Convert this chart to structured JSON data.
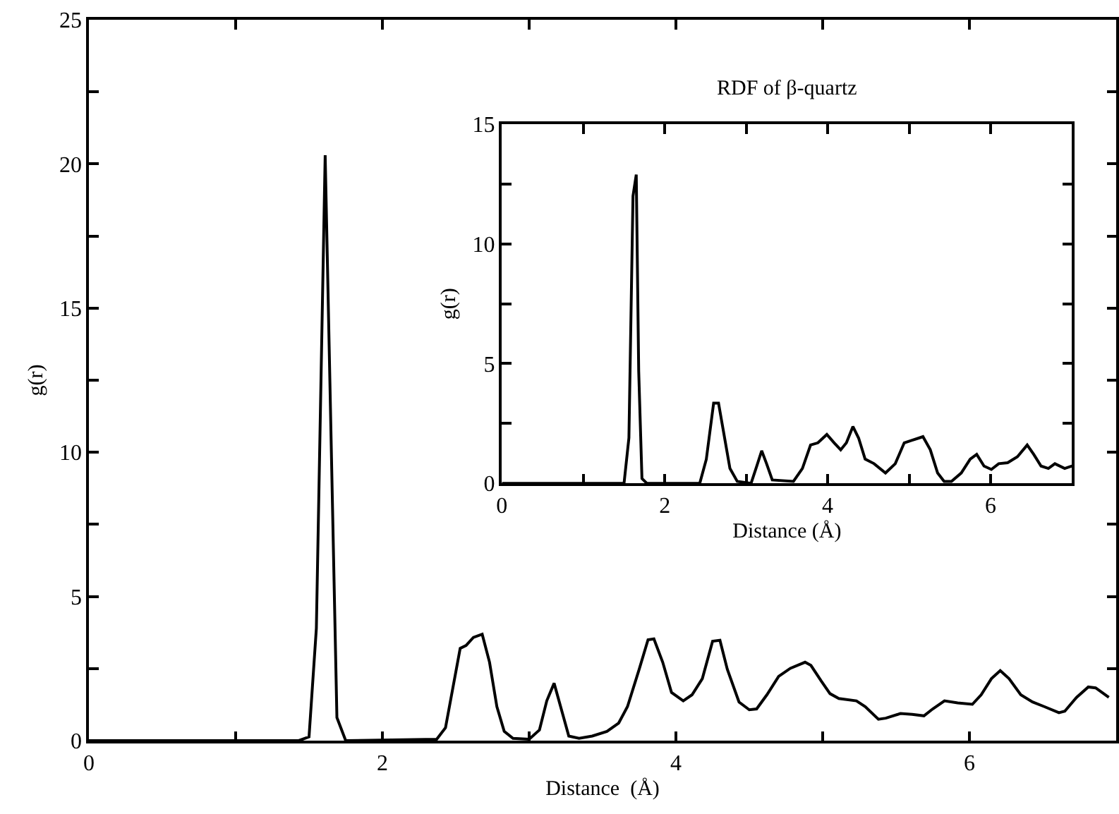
{
  "chart_data": [
    {
      "type": "line",
      "xlabel": "Distance  (Å)",
      "ylabel": "g(r)",
      "xlim": [
        0,
        7
      ],
      "ylim": [
        0,
        25
      ],
      "xticks": [
        0,
        {
          "value": 1,
          "label": null
        },
        2,
        {
          "value": 3,
          "label": null
        },
        4,
        {
          "value": 5,
          "label": null
        },
        6,
        {
          "value": 7,
          "label": null
        }
      ],
      "yticks": [
        0,
        {
          "value": 2.5,
          "label": null
        },
        5,
        {
          "value": 7.5,
          "label": null
        },
        10,
        {
          "value": 12.5,
          "label": null
        },
        15,
        {
          "value": 17.5,
          "label": null
        },
        20,
        {
          "value": 22.5,
          "label": null
        },
        25
      ],
      "marker": "none",
      "line_style": "solid",
      "series": [
        {
          "color": "#000000",
          "x": [
            0,
            1.43,
            1.5,
            1.55,
            1.61,
            1.69,
            1.75,
            2.37,
            2.43,
            2.53,
            2.57,
            2.62,
            2.68,
            2.73,
            2.78,
            2.83,
            2.89,
            3.0,
            3.07,
            3.12,
            3.17,
            3.27,
            3.34,
            3.43,
            3.53,
            3.61,
            3.67,
            3.75,
            3.81,
            3.85,
            3.91,
            3.97,
            4.05,
            4.11,
            4.18,
            4.25,
            4.3,
            4.35,
            4.43,
            4.5,
            4.55,
            4.62,
            4.7,
            4.78,
            4.88,
            4.92,
            4.99,
            5.05,
            5.11,
            5.23,
            5.29,
            5.38,
            5.43,
            5.53,
            5.61,
            5.69,
            5.75,
            5.83,
            5.92,
            6.02,
            6.08,
            6.15,
            6.21,
            6.27,
            6.35,
            6.43,
            6.51,
            6.61,
            6.65,
            6.73,
            6.81,
            6.86,
            6.95
          ],
          "values": [
            0,
            0,
            0.13,
            3.9,
            20.3,
            0.8,
            0,
            0.05,
            0.45,
            3.2,
            3.3,
            3.58,
            3.69,
            2.72,
            1.18,
            0.32,
            0.08,
            0.05,
            0.37,
            1.38,
            1.99,
            0.16,
            0.08,
            0.16,
            0.32,
            0.61,
            1.18,
            2.48,
            3.5,
            3.53,
            2.72,
            1.67,
            1.38,
            1.59,
            2.15,
            3.45,
            3.48,
            2.48,
            1.34,
            1.07,
            1.1,
            1.59,
            2.23,
            2.51,
            2.72,
            2.61,
            2.07,
            1.63,
            1.46,
            1.38,
            1.18,
            0.74,
            0.78,
            0.94,
            0.91,
            0.86,
            1.1,
            1.38,
            1.31,
            1.26,
            1.59,
            2.15,
            2.43,
            2.15,
            1.59,
            1.34,
            1.18,
            0.97,
            1.02,
            1.5,
            1.86,
            1.83,
            1.5
          ]
        }
      ]
    },
    {
      "type": "line",
      "title": "RDF of β-quartz",
      "xlabel": "Distance (Å)",
      "ylabel": "g(r)",
      "xlim": [
        0,
        7
      ],
      "ylim": [
        0,
        15
      ],
      "xticks": [
        0,
        {
          "value": 1,
          "label": null
        },
        2,
        {
          "value": 3,
          "label": null
        },
        4,
        {
          "value": 5,
          "label": null
        },
        6,
        {
          "value": 7,
          "label": null
        }
      ],
      "yticks": [
        0,
        {
          "value": 2.5,
          "label": null
        },
        5,
        {
          "value": 7.5,
          "label": null
        },
        10,
        {
          "value": 12.5,
          "label": null
        },
        15
      ],
      "marker": "none",
      "line_style": "solid",
      "series": [
        {
          "color": "#000000",
          "x": [
            0,
            1.5,
            1.56,
            1.61,
            1.65,
            1.68,
            1.72,
            1.78,
            2.43,
            2.51,
            2.6,
            2.66,
            2.72,
            2.8,
            2.89,
            3.06,
            3.13,
            3.19,
            3.25,
            3.32,
            3.58,
            3.69,
            3.79,
            3.88,
            3.99,
            4.08,
            4.16,
            4.23,
            4.31,
            4.38,
            4.46,
            4.57,
            4.71,
            4.83,
            4.94,
            5.03,
            5.12,
            5.17,
            5.26,
            5.35,
            5.43,
            5.52,
            5.64,
            5.75,
            5.83,
            5.92,
            6.01,
            6.1,
            6.21,
            6.33,
            6.45,
            6.53,
            6.62,
            6.71,
            6.79,
            6.91,
            7.0
          ],
          "values": [
            0,
            0,
            1.9,
            12.0,
            12.9,
            4.7,
            0.2,
            0,
            0,
            1.0,
            3.35,
            3.35,
            2.18,
            0.62,
            0.08,
            0,
            0.72,
            1.36,
            0.82,
            0.14,
            0.08,
            0.62,
            1.6,
            1.69,
            2.04,
            1.69,
            1.4,
            1.69,
            2.37,
            1.89,
            1.01,
            0.82,
            0.43,
            0.82,
            1.69,
            1.79,
            1.89,
            1.95,
            1.4,
            0.43,
            0.08,
            0.08,
            0.43,
            1.01,
            1.21,
            0.72,
            0.58,
            0.82,
            0.86,
            1.11,
            1.6,
            1.21,
            0.72,
            0.62,
            0.82,
            0.62,
            0.72
          ]
        }
      ]
    }
  ]
}
